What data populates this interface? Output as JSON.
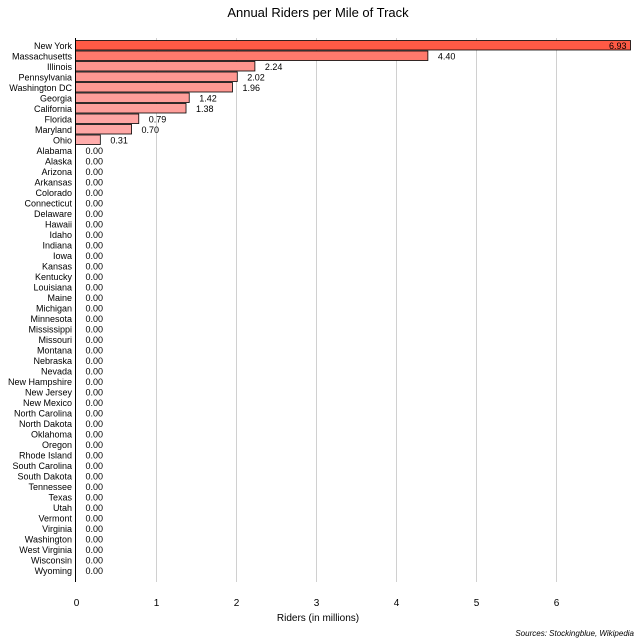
{
  "chart_data": {
    "type": "bar",
    "orientation": "horizontal",
    "title": "Annual Riders per Mile of Track",
    "xlabel": "Riders (in millions)",
    "ylabel": "",
    "xlim": [
      0,
      6.93
    ],
    "xticks": [
      0,
      1,
      2,
      3,
      4,
      5,
      6
    ],
    "grid": true,
    "source": "Sources: Stockingblue, Wikipedia",
    "categories": [
      "New York",
      "Massachusetts",
      "Illinois",
      "Pennsylvania",
      "Washington DC",
      "Georgia",
      "California",
      "Florida",
      "Maryland",
      "Ohio",
      "Alabama",
      "Alaska",
      "Arizona",
      "Arkansas",
      "Colorado",
      "Connecticut",
      "Delaware",
      "Hawaii",
      "Idaho",
      "Indiana",
      "Iowa",
      "Kansas",
      "Kentucky",
      "Louisiana",
      "Maine",
      "Michigan",
      "Minnesota",
      "Mississippi",
      "Missouri",
      "Montana",
      "Nebraska",
      "Nevada",
      "New Hampshire",
      "New Jersey",
      "New Mexico",
      "North Carolina",
      "North Dakota",
      "Oklahoma",
      "Oregon",
      "Rhode Island",
      "South Carolina",
      "South Dakota",
      "Tennessee",
      "Texas",
      "Utah",
      "Vermont",
      "Virginia",
      "Washington",
      "West Virginia",
      "Wisconsin",
      "Wyoming"
    ],
    "values": [
      6.93,
      4.4,
      2.24,
      2.02,
      1.96,
      1.42,
      1.38,
      0.79,
      0.7,
      0.31,
      0,
      0,
      0,
      0,
      0,
      0,
      0,
      0,
      0,
      0,
      0,
      0,
      0,
      0,
      0,
      0,
      0,
      0,
      0,
      0,
      0,
      0,
      0,
      0,
      0,
      0,
      0,
      0,
      0,
      0,
      0,
      0,
      0,
      0,
      0,
      0,
      0,
      0,
      0,
      0,
      0
    ],
    "value_labels": [
      "6.93",
      "4.40",
      "2.24",
      "2.02",
      "1.96",
      "1.42",
      "1.38",
      "0.79",
      "0.70",
      "0.31",
      "0.00",
      "0.00",
      "0.00",
      "0.00",
      "0.00",
      "0.00",
      "0.00",
      "0.00",
      "0.00",
      "0.00",
      "0.00",
      "0.00",
      "0.00",
      "0.00",
      "0.00",
      "0.00",
      "0.00",
      "0.00",
      "0.00",
      "0.00",
      "0.00",
      "0.00",
      "0.00",
      "0.00",
      "0.00",
      "0.00",
      "0.00",
      "0.00",
      "0.00",
      "0.00",
      "0.00",
      "0.00",
      "0.00",
      "0.00",
      "0.00",
      "0.00",
      "0.00",
      "0.00",
      "0.00",
      "0.00",
      "0.00"
    ],
    "colors": {
      "high": "#ff5a45",
      "low": "#ffb0b0",
      "grid": "#d0d0d0",
      "stroke": "#000000"
    }
  }
}
